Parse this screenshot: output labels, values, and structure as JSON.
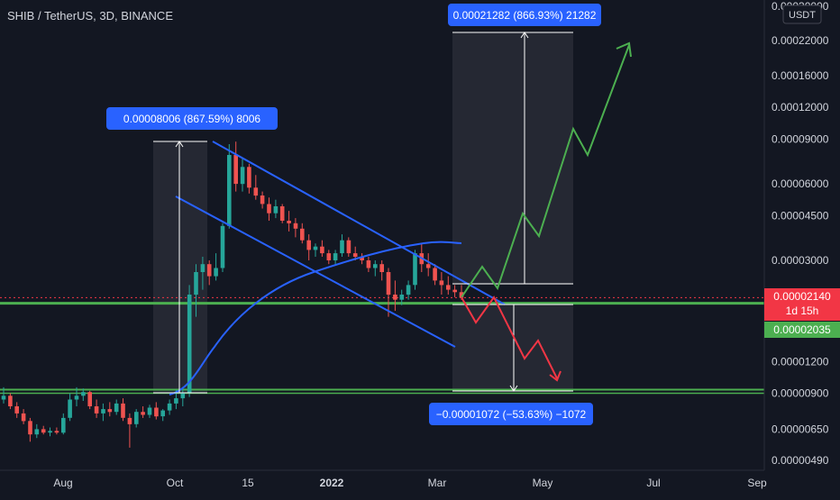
{
  "chart_data": {
    "type": "candlestick",
    "symbol_line": "SHIB / TetherUS, 3D, BINANCE",
    "currency_label": "USDT",
    "scale": "log",
    "ylim": [
      4.9e-06,
      0.0003
    ],
    "x_tick_labels": [
      "Aug",
      "Oct",
      "15",
      "2022",
      "Mar",
      "May",
      "Jul",
      "Sep"
    ],
    "y_tick_labels": [
      {
        "label": "0.00030000",
        "value": 0.0003
      },
      {
        "label": "0.00022000",
        "value": 0.00022
      },
      {
        "label": "0.00016000",
        "value": 0.00016
      },
      {
        "label": "0.00012000",
        "value": 0.00012
      },
      {
        "label": "0.00009000",
        "value": 9e-05
      },
      {
        "label": "0.00006000",
        "value": 6e-05
      },
      {
        "label": "0.00004500",
        "value": 4.5e-05
      },
      {
        "label": "0.00003000",
        "value": 3e-05
      },
      {
        "label": "0.00001200",
        "value": 1.2e-05
      },
      {
        "label": "0.00000900",
        "value": 9e-06
      },
      {
        "label": "0.00000650",
        "value": 6.5e-06
      },
      {
        "label": "0.00000490",
        "value": 4.9e-06
      }
    ],
    "price_tag": {
      "price": "0.00002140",
      "countdown": "1d 15h",
      "value": 2.14e-05,
      "color": "#f23645"
    },
    "level_tag": {
      "price": "0.00002035",
      "value": 2.035e-05,
      "color": "#22ab94"
    },
    "measure_labels": [
      {
        "text": "0.00008006 (867.59%) 8006"
      },
      {
        "text": "0.00021282 (866.93%) 21282"
      },
      {
        "text": "−0.00001072 (−53.63%) −1072"
      }
    ],
    "support_levels": [
      2.035e-05,
      9.3e-06
    ],
    "colors": {
      "up": "#26a69a",
      "down": "#ef5350",
      "trendline": "#2962ff",
      "support": "#4caf50",
      "bull_path": "#4caf50",
      "bear_path": "#f23645"
    },
    "candles": [
      [
        8.5e-06,
        9.5e-06,
        8.2e-06,
        8.8e-06
      ],
      [
        8.8e-06,
        9e-06,
        7.8e-06,
        8e-06
      ],
      [
        8e-06,
        8.3e-06,
        7.2e-06,
        7.5e-06
      ],
      [
        7.5e-06,
        7.8e-06,
        6.8e-06,
        7e-06
      ],
      [
        7e-06,
        7.2e-06,
        5.8e-06,
        6.2e-06
      ],
      [
        6.2e-06,
        6.8e-06,
        6e-06,
        6.5e-06
      ],
      [
        6.5e-06,
        6.7e-06,
        6.2e-06,
        6.3e-06
      ],
      [
        6.3e-06,
        6.6e-06,
        6.1e-06,
        6.4e-06
      ],
      [
        6.4e-06,
        6.6e-06,
        6.2e-06,
        6.3e-06
      ],
      [
        6.3e-06,
        7.5e-06,
        6.2e-06,
        7.2e-06
      ],
      [
        7.2e-06,
        9e-06,
        7e-06,
        8.5e-06
      ],
      [
        8.5e-06,
        9.5e-06,
        8e-06,
        8.8e-06
      ],
      [
        8.8e-06,
        9.4e-06,
        8.4e-06,
        9.1e-06
      ],
      [
        9.1e-06,
        9.2e-06,
        7.8e-06,
        8e-06
      ],
      [
        8e-06,
        8.5e-06,
        7.2e-06,
        7.5e-06
      ],
      [
        7.5e-06,
        8.2e-06,
        7e-06,
        7.8e-06
      ],
      [
        7.8e-06,
        8.3e-06,
        7.3e-06,
        7.6e-06
      ],
      [
        7.6e-06,
        8.5e-06,
        7.4e-06,
        8.2e-06
      ],
      [
        8.2e-06,
        8.6e-06,
        7e-06,
        7.2e-06
      ],
      [
        7.2e-06,
        7.5e-06,
        5.5e-06,
        6.8e-06
      ],
      [
        6.8e-06,
        7.8e-06,
        6.6e-06,
        7.6e-06
      ],
      [
        7.6e-06,
        8e-06,
        7.2e-06,
        7.4e-06
      ],
      [
        7.4e-06,
        8.1e-06,
        7.2e-06,
        7.9e-06
      ],
      [
        7.9e-06,
        8.3e-06,
        7.1e-06,
        7.3e-06
      ],
      [
        7.3e-06,
        7.8e-06,
        7e-06,
        7.7e-06
      ],
      [
        7.7e-06,
        8.5e-06,
        7.4e-06,
        8.2e-06
      ],
      [
        8.2e-06,
        9.3e-06,
        7.8e-06,
        8.6e-06
      ],
      [
        8.6e-06,
        9.5e-06,
        8e-06,
        9e-06
      ],
      [
        9e-06,
        2.4e-05,
        8.7e-06,
        2.2e-05
      ],
      [
        2.2e-05,
        2.9e-05,
        1.8e-05,
        2.7e-05
      ],
      [
        2.7e-05,
        3.1e-05,
        2.3e-05,
        2.9e-05
      ],
      [
        2.9e-05,
        3e-05,
        2.4e-05,
        2.6e-05
      ],
      [
        2.6e-05,
        3.2e-05,
        2.5e-05,
        2.8e-05
      ],
      [
        2.8e-05,
        4.2e-05,
        2.7e-05,
        4.1e-05
      ],
      [
        4.1e-05,
        8.6e-05,
        4e-05,
        7.8e-05
      ],
      [
        7.8e-05,
        8.8e-05,
        5.6e-05,
        6e-05
      ],
      [
        6e-05,
        7.6e-05,
        5.6e-05,
        7e-05
      ],
      [
        7e-05,
        7.2e-05,
        5.5e-05,
        5.8e-05
      ],
      [
        5.8e-05,
        6.5e-05,
        5.2e-05,
        5.4e-05
      ],
      [
        5.4e-05,
        5.6e-05,
        4.8e-05,
        5e-05
      ],
      [
        5e-05,
        5.3e-05,
        4.3e-05,
        4.6e-05
      ],
      [
        4.6e-05,
        5.2e-05,
        4.4e-05,
        4.9e-05
      ],
      [
        4.9e-05,
        5e-05,
        4.2e-05,
        4.3e-05
      ],
      [
        4.3e-05,
        4.7e-05,
        3.9e-05,
        4.2e-05
      ],
      [
        4.2e-05,
        4.4e-05,
        3.7e-05,
        4e-05
      ],
      [
        4e-05,
        4.2e-05,
        3.5e-05,
        3.6e-05
      ],
      [
        3.6e-05,
        3.8e-05,
        3e-05,
        3.3e-05
      ],
      [
        3.3e-05,
        3.5e-05,
        3.1e-05,
        3.4e-05
      ],
      [
        3.4e-05,
        3.6e-05,
        3.1e-05,
        3.2e-05
      ],
      [
        3.2e-05,
        3.3e-05,
        2.9e-05,
        3e-05
      ],
      [
        3e-05,
        3.3e-05,
        2.9e-05,
        3.2e-05
      ],
      [
        3.2e-05,
        3.8e-05,
        3.1e-05,
        3.6e-05
      ],
      [
        3.6e-05,
        3.7e-05,
        3.1e-05,
        3.2e-05
      ],
      [
        3.2e-05,
        3.4e-05,
        3e-05,
        3.1e-05
      ],
      [
        3.1e-05,
        3.2e-05,
        2.9e-05,
        3e-05
      ],
      [
        3e-05,
        3.1e-05,
        2.7e-05,
        2.8e-05
      ],
      [
        2.8e-05,
        3e-05,
        2.6e-05,
        2.9e-05
      ],
      [
        2.9e-05,
        3e-05,
        2.5e-05,
        2.7e-05
      ],
      [
        2.7e-05,
        2.8e-05,
        1.8e-05,
        2.2e-05
      ],
      [
        2.2e-05,
        2.5e-05,
        1.9e-05,
        2.1e-05
      ],
      [
        2.1e-05,
        2.3e-05,
        2e-05,
        2.2e-05
      ],
      [
        2.2e-05,
        2.5e-05,
        2.1e-05,
        2.4e-05
      ],
      [
        2.4e-05,
        3.3e-05,
        2.3e-05,
        3.2e-05
      ],
      [
        3.2e-05,
        3.5e-05,
        2.7e-05,
        2.9e-05
      ],
      [
        2.9e-05,
        3.2e-05,
        2.6e-05,
        2.8e-05
      ],
      [
        2.8e-05,
        2.9e-05,
        2.4e-05,
        2.5e-05
      ],
      [
        2.5e-05,
        2.7e-05,
        2.2e-05,
        2.4e-05
      ],
      [
        2.4e-05,
        2.6e-05,
        2.2e-05,
        2.3e-05
      ],
      [
        2.3e-05,
        2.4e-05,
        2.15e-05,
        2.25e-05
      ],
      [
        2.25e-05,
        2.4e-05,
        2.1e-05,
        2.14e-05
      ]
    ]
  }
}
